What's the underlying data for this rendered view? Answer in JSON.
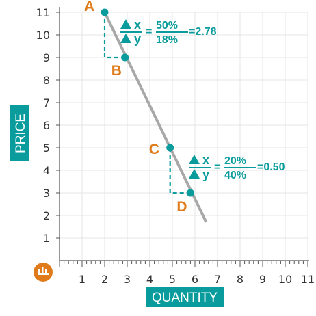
{
  "chart_data": {
    "type": "line",
    "xlabel": "QUANTITY",
    "ylabel": "PRICE",
    "xlim": [
      0,
      11
    ],
    "ylim": [
      0,
      11
    ],
    "x_ticks": [
      "1",
      "2",
      "3",
      "4",
      "5",
      "6",
      "7",
      "8",
      "9",
      "10",
      "11"
    ],
    "y_ticks": [
      "1",
      "2",
      "3",
      "4",
      "5",
      "6",
      "7",
      "8",
      "9",
      "10",
      "11"
    ],
    "grid": true,
    "demand_line": {
      "x": [
        2.0,
        6.5
      ],
      "y": [
        11.0,
        1.7
      ]
    },
    "points": [
      {
        "label": "A",
        "x": 2.0,
        "y": 11.0
      },
      {
        "label": "B",
        "x": 2.9,
        "y": 9.0
      },
      {
        "label": "C",
        "x": 4.9,
        "y": 5.0
      },
      {
        "label": "D",
        "x": 5.8,
        "y": 3.0
      }
    ],
    "annotations": [
      {
        "numerator_symbol": "▲x",
        "denominator_symbol": "▲y",
        "numerator": "50%",
        "denominator": "18%",
        "result": "=2.78"
      },
      {
        "numerator_symbol": "▲x",
        "denominator_symbol": "▲y",
        "numerator": "20%",
        "denominator": "40%",
        "result": "=0.50"
      }
    ],
    "colors": {
      "line": "#a8a8a8",
      "point": "#0a9c9c",
      "point_label": "#e07b1c",
      "badge": "#0a9c9c",
      "grid": "#e6e6e6"
    }
  }
}
